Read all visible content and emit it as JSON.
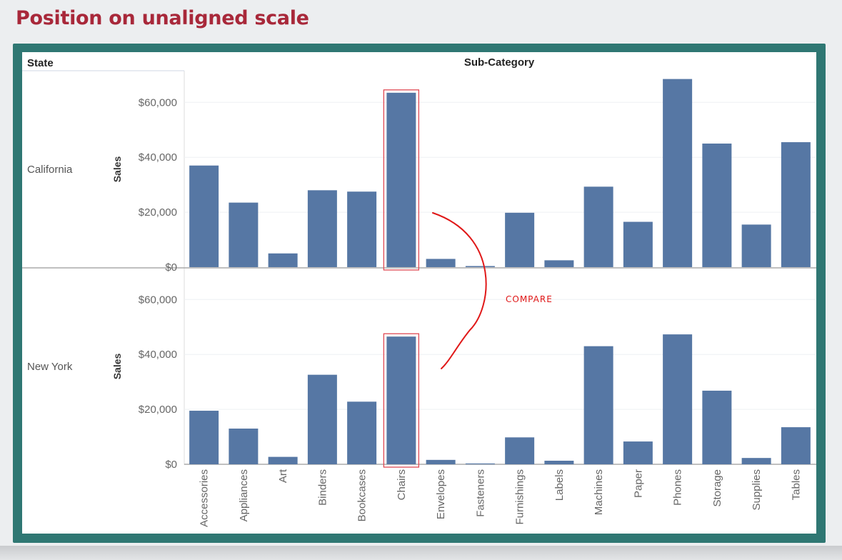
{
  "slide": {
    "title": "Position on unaligned scale"
  },
  "annotation": {
    "note": "COMPARE",
    "color": "#e01818"
  },
  "chart_data": {
    "type": "bar",
    "row_header": "State",
    "column_header": "Sub-Category",
    "ylabel": "Sales",
    "ylim": [
      0,
      70000
    ],
    "yticks": [
      "$0",
      "$20,000",
      "$40,000",
      "$60,000"
    ],
    "ytick_values": [
      0,
      20000,
      40000,
      60000
    ],
    "categories": [
      "Accessories",
      "Appliances",
      "Art",
      "Binders",
      "Bookcases",
      "Chairs",
      "Envelopes",
      "Fasteners",
      "Furnishings",
      "Labels",
      "Machines",
      "Paper",
      "Phones",
      "Storage",
      "Supplies",
      "Tables"
    ],
    "series": [
      {
        "name": "California",
        "values": [
          37000,
          23500,
          5000,
          28000,
          27500,
          63500,
          3000,
          400,
          19800,
          2500,
          29300,
          16500,
          68500,
          45000,
          15500,
          45500
        ]
      },
      {
        "name": "New York",
        "values": [
          19500,
          13000,
          2700,
          32600,
          22800,
          46500,
          1600,
          300,
          9800,
          1300,
          43000,
          8300,
          47300,
          26800,
          2300,
          13500
        ]
      }
    ],
    "highlighted_category": "Chairs",
    "bar_color": "#5677a4",
    "grid": true,
    "legend": "none"
  }
}
